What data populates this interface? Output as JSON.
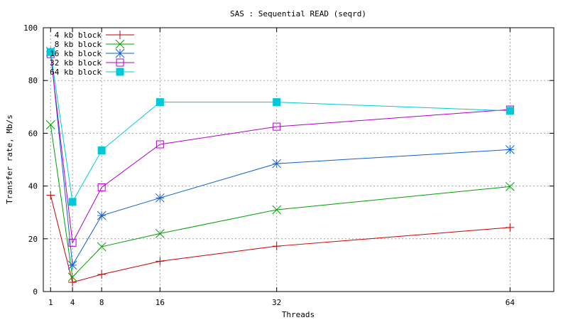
{
  "chart_data": {
    "type": "line",
    "title": "SAS : Sequential READ (seqrd)",
    "xlabel": "Threads",
    "ylabel": "Transfer rate, Mb/s",
    "x": [
      1,
      4,
      8,
      16,
      32,
      64
    ],
    "xticks": [
      1,
      4,
      8,
      16,
      32,
      64
    ],
    "yticks": [
      0,
      20,
      40,
      60,
      80,
      100
    ],
    "xlim": [
      0,
      70
    ],
    "ylim": [
      0,
      100
    ],
    "grid": true,
    "legend_position": "top-left",
    "series": [
      {
        "name": "4 kb block",
        "color": "#cc0000",
        "marker": "plus",
        "values": [
          36.5,
          3.5,
          6.5,
          11.5,
          17.2,
          24.3
        ]
      },
      {
        "name": "8 kb block",
        "color": "#00a000",
        "marker": "cross",
        "values": [
          63.2,
          5.5,
          17.0,
          22.0,
          31.0,
          39.8
        ]
      },
      {
        "name": "16 kb block",
        "color": "#1060d0",
        "marker": "star",
        "values": [
          91.0,
          10.0,
          28.8,
          35.5,
          48.5,
          53.8
        ]
      },
      {
        "name": "32 kb block",
        "color": "#b000c8",
        "marker": "open-square",
        "values": [
          90.0,
          18.5,
          39.5,
          55.8,
          62.5,
          69.0
        ]
      },
      {
        "name": "64 kb block",
        "color": "#00c8d8",
        "marker": "filled-square",
        "values": [
          90.8,
          34.0,
          53.5,
          71.8,
          71.8,
          68.5
        ]
      }
    ]
  }
}
